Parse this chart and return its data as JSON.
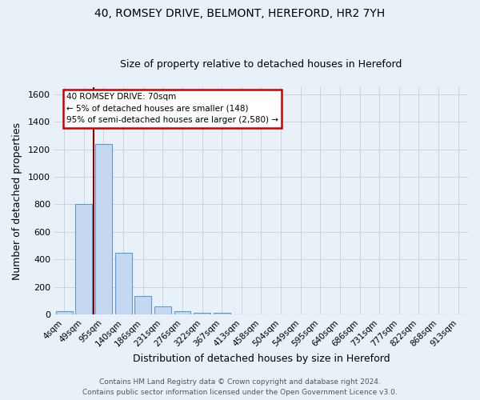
{
  "title_line1": "40, ROMSEY DRIVE, BELMONT, HEREFORD, HR2 7YH",
  "title_line2": "Size of property relative to detached houses in Hereford",
  "xlabel": "Distribution of detached houses by size in Hereford",
  "ylabel": "Number of detached properties",
  "footer_line1": "Contains HM Land Registry data © Crown copyright and database right 2024.",
  "footer_line2": "Contains public sector information licensed under the Open Government Licence v3.0.",
  "bar_labels": [
    "4sqm",
    "49sqm",
    "95sqm",
    "140sqm",
    "186sqm",
    "231sqm",
    "276sqm",
    "322sqm",
    "367sqm",
    "413sqm",
    "458sqm",
    "504sqm",
    "549sqm",
    "595sqm",
    "640sqm",
    "686sqm",
    "731sqm",
    "777sqm",
    "822sqm",
    "868sqm",
    "913sqm"
  ],
  "bar_values": [
    25,
    800,
    1240,
    450,
    135,
    60,
    25,
    15,
    12,
    0,
    0,
    0,
    0,
    0,
    0,
    0,
    0,
    0,
    0,
    0,
    0
  ],
  "bar_color": "#c5d8f0",
  "bar_edgecolor": "#5b9bd5",
  "vline_x_data": 1.5,
  "vline_color": "#8b0000",
  "ylim": [
    0,
    1650
  ],
  "yticks": [
    0,
    200,
    400,
    600,
    800,
    1000,
    1200,
    1400,
    1600
  ],
  "grid_color": "#c8d4e0",
  "bg_color": "#e8f0f8",
  "annotation_text": "40 ROMSEY DRIVE: 70sqm\n← 5% of detached houses are smaller (148)\n95% of semi-detached houses are larger (2,580) →",
  "annotation_box_facecolor": "#ffffff",
  "annotation_box_edgecolor": "#cc0000",
  "title1_fontsize": 10,
  "title2_fontsize": 9,
  "footer_fontsize": 6.5,
  "figsize": [
    6.0,
    5.0
  ],
  "dpi": 100
}
